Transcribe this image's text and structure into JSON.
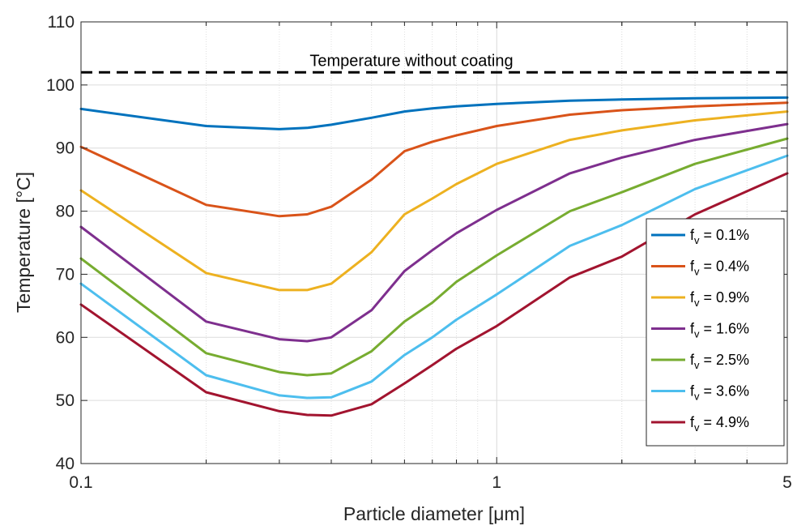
{
  "chart_data": {
    "type": "line",
    "xlabel": "Particle diameter [μm]",
    "ylabel": "Temperature [°C]",
    "x_scale": "log",
    "xlim": [
      0.1,
      5
    ],
    "ylim": [
      40,
      110
    ],
    "x_ticks": [
      0.1,
      1,
      5
    ],
    "x_tick_labels": [
      "0.1",
      "1",
      "5"
    ],
    "y_ticks": [
      40,
      50,
      60,
      70,
      80,
      90,
      100,
      110
    ],
    "y_tick_labels": [
      "40",
      "50",
      "60",
      "70",
      "80",
      "90",
      "100",
      "110"
    ],
    "grid": true,
    "legend_position": "bottom-right",
    "reference_line": {
      "label": "Temperature without coating",
      "y": 102,
      "style": "dashed",
      "color": "#000000"
    },
    "x": [
      0.1,
      0.2,
      0.3,
      0.35,
      0.4,
      0.5,
      0.6,
      0.7,
      0.8,
      1.0,
      1.5,
      2.0,
      3.0,
      5.0
    ],
    "series": [
      {
        "name": "f_v = 0.1%",
        "color": "#0072BD",
        "values": [
          96.2,
          93.5,
          93.0,
          93.2,
          93.7,
          94.8,
          95.8,
          96.3,
          96.6,
          97.0,
          97.5,
          97.7,
          97.9,
          98.0
        ]
      },
      {
        "name": "f_v = 0.4%",
        "color": "#D95319",
        "values": [
          90.2,
          81.0,
          79.2,
          79.5,
          80.7,
          85.0,
          89.5,
          91.0,
          92.0,
          93.5,
          95.3,
          96.0,
          96.6,
          97.2
        ]
      },
      {
        "name": "f_v = 0.9%",
        "color": "#EDB120",
        "values": [
          83.3,
          70.2,
          67.5,
          67.5,
          68.5,
          73.5,
          79.5,
          82.0,
          84.3,
          87.5,
          91.3,
          92.8,
          94.4,
          95.8
        ]
      },
      {
        "name": "f_v = 1.6%",
        "color": "#7E2F8E",
        "values": [
          77.5,
          62.5,
          59.7,
          59.4,
          60.0,
          64.3,
          70.5,
          73.8,
          76.5,
          80.2,
          86.0,
          88.5,
          91.3,
          93.8
        ]
      },
      {
        "name": "f_v = 2.5%",
        "color": "#77AC30",
        "values": [
          72.5,
          57.5,
          54.5,
          54.0,
          54.3,
          57.8,
          62.5,
          65.5,
          68.8,
          73.0,
          80.0,
          83.0,
          87.5,
          91.5
        ]
      },
      {
        "name": "f_v = 3.6%",
        "color": "#4DBEEE",
        "values": [
          68.5,
          54.0,
          50.8,
          50.4,
          50.5,
          53.0,
          57.2,
          60.0,
          62.8,
          66.8,
          74.5,
          77.8,
          83.5,
          88.8
        ]
      },
      {
        "name": "f_v = 4.9%",
        "color": "#A2142F",
        "values": [
          65.2,
          51.3,
          48.3,
          47.7,
          47.6,
          49.4,
          52.7,
          55.6,
          58.2,
          61.8,
          69.5,
          72.8,
          79.5,
          86.0
        ]
      }
    ],
    "legend": [
      {
        "main": "f",
        "sub": "v",
        "rest": " = 0.1%"
      },
      {
        "main": "f",
        "sub": "v",
        "rest": " = 0.4%"
      },
      {
        "main": "f",
        "sub": "v",
        "rest": " = 0.9%"
      },
      {
        "main": "f",
        "sub": "v",
        "rest": " = 1.6%"
      },
      {
        "main": "f",
        "sub": "v",
        "rest": " = 2.5%"
      },
      {
        "main": "f",
        "sub": "v",
        "rest": " = 3.6%"
      },
      {
        "main": "f",
        "sub": "v",
        "rest": " = 4.9%"
      }
    ]
  }
}
